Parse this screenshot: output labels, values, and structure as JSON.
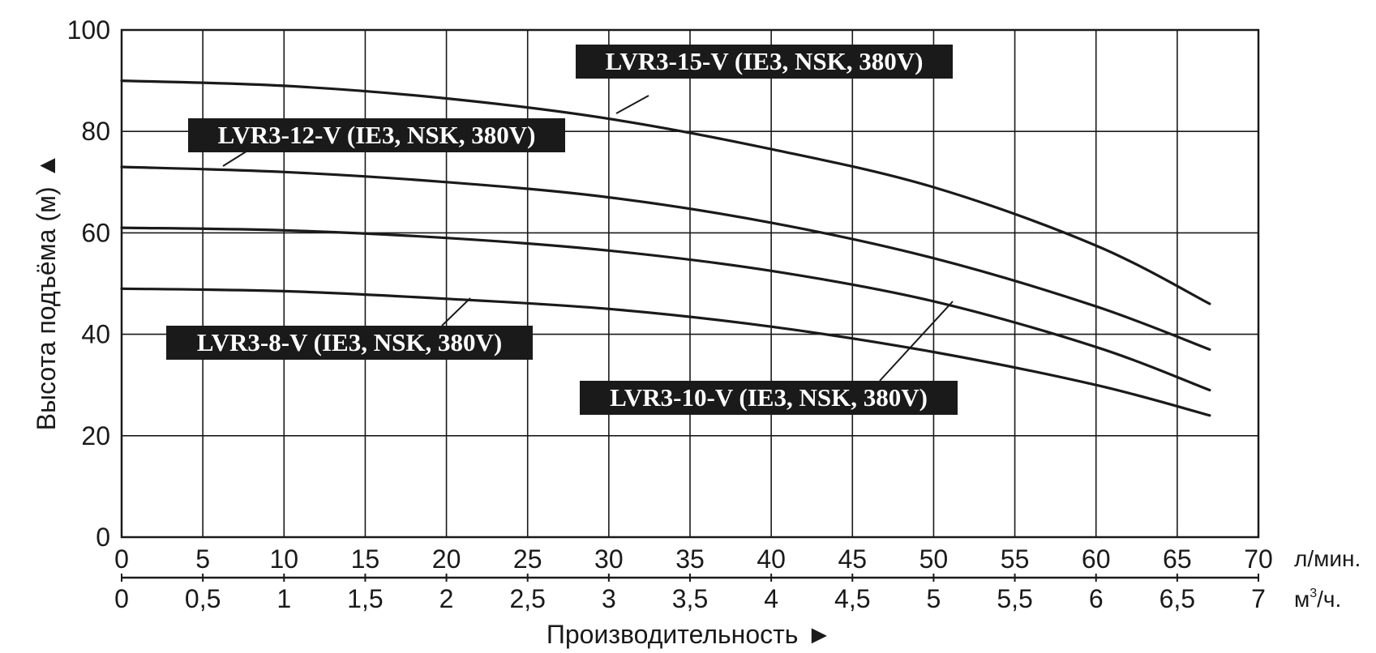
{
  "chart_data": {
    "type": "line",
    "ylabel": "Высота подъёма (м)",
    "y_arrow": "▲",
    "xlabel": "Производительность",
    "x_arrow": "►",
    "x_unit_primary": "л/мин.",
    "x_unit_secondary_base": "м",
    "x_unit_secondary_exp": "3",
    "x_unit_secondary_tail": "/ч.",
    "xlim": [
      0,
      70
    ],
    "ylim": [
      0,
      100
    ],
    "grid": true,
    "x_ticks": [
      "0",
      "5",
      "10",
      "15",
      "20",
      "25",
      "30",
      "35",
      "40",
      "45",
      "50",
      "55",
      "60",
      "65",
      "70"
    ],
    "x_ticks_secondary": [
      "0",
      "0,5",
      "1",
      "1,5",
      "2",
      "2,5",
      "3",
      "3,5",
      "4",
      "4,5",
      "5",
      "5,5",
      "6",
      "6,5",
      "7"
    ],
    "y_ticks": [
      "0",
      "20",
      "40",
      "60",
      "80",
      "100"
    ],
    "x": [
      0,
      10,
      20,
      30,
      40,
      50,
      60,
      67
    ],
    "series": [
      {
        "name": "LVR3-15-V (IE3, NSK, 380V)",
        "values": [
          90,
          89,
          86.5,
          82.5,
          76.5,
          69,
          57.5,
          46
        ]
      },
      {
        "name": "LVR3-12-V (IE3, NSK, 380V)",
        "values": [
          73,
          72,
          70,
          67,
          62,
          55,
          45.5,
          37
        ]
      },
      {
        "name": "LVR3-10-V (IE3, NSK, 380V)",
        "values": [
          61,
          60.5,
          59,
          56.5,
          52.5,
          46.5,
          37.5,
          29
        ]
      },
      {
        "name": "LVR3-8-V (IE3, NSK, 380V)",
        "values": [
          49,
          48.5,
          47,
          45,
          41.5,
          36.5,
          30,
          24
        ]
      }
    ]
  }
}
